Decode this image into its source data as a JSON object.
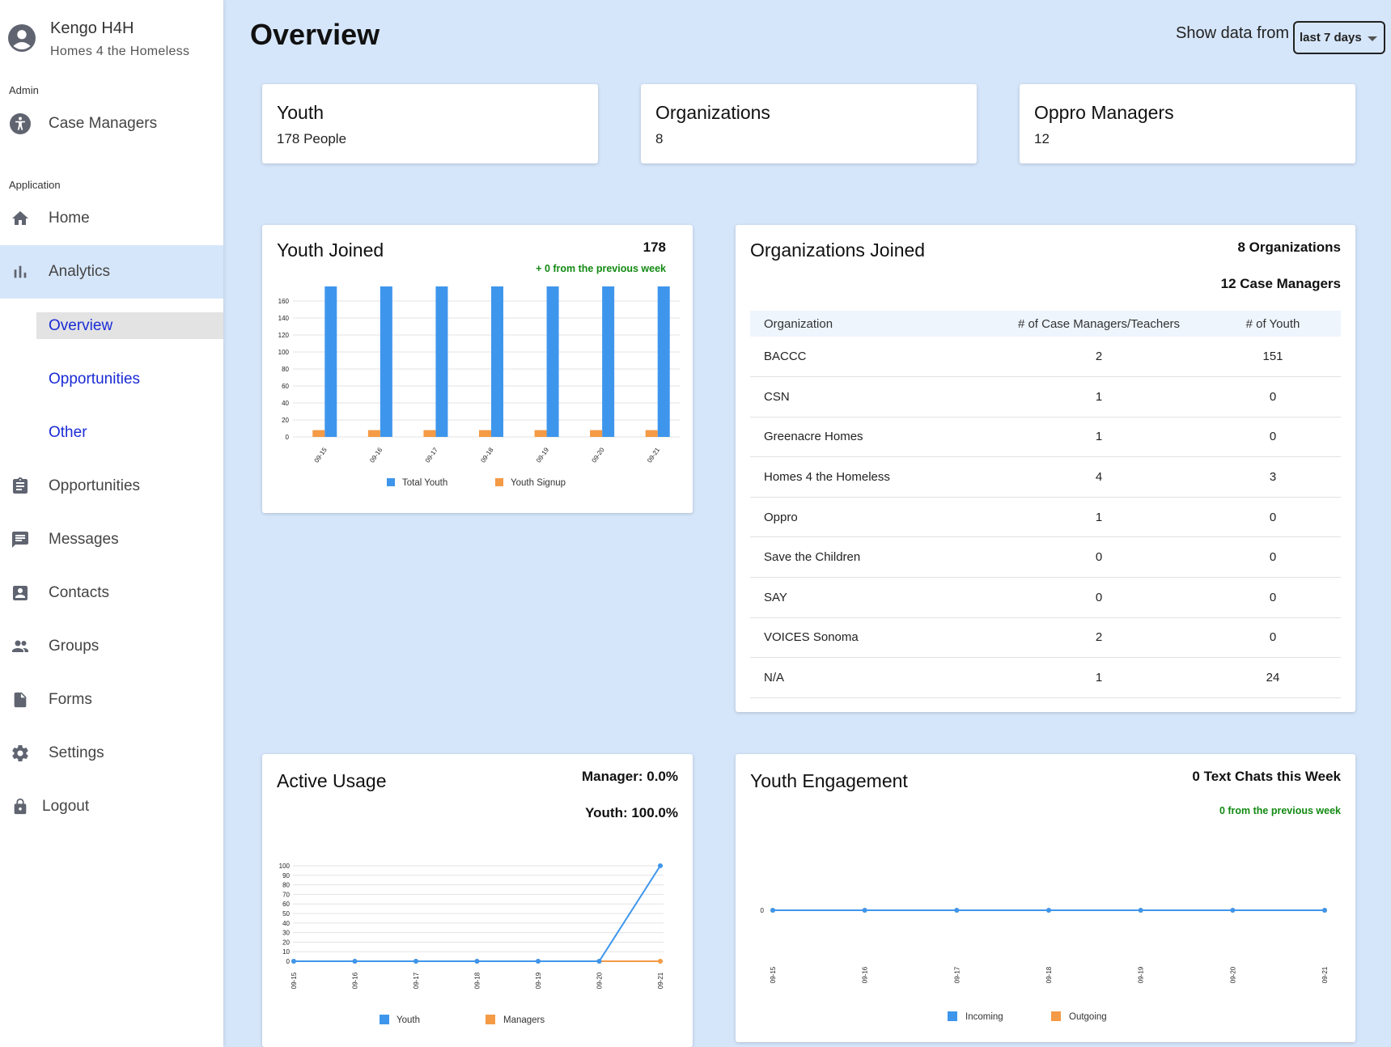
{
  "profile": {
    "name": "Kengo H4H",
    "org": "Homes 4 the Homeless"
  },
  "sidebar": {
    "admin_label": "Admin",
    "admin_items": [
      {
        "label": "Case Managers",
        "icon": "accessibility-icon"
      }
    ],
    "application_label": "Application",
    "items": [
      {
        "label": "Home",
        "icon": "home-icon"
      },
      {
        "label": "Analytics",
        "icon": "bar-chart-icon"
      },
      {
        "label": "Opportunities",
        "icon": "clipboard-icon"
      },
      {
        "label": "Messages",
        "icon": "message-icon"
      },
      {
        "label": "Contacts",
        "icon": "contact-icon"
      },
      {
        "label": "Groups",
        "icon": "group-icon"
      },
      {
        "label": "Forms",
        "icon": "file-icon"
      },
      {
        "label": "Settings",
        "icon": "gear-icon"
      }
    ],
    "sub_items": [
      {
        "label": "Overview"
      },
      {
        "label": "Opportunities"
      },
      {
        "label": "Other"
      }
    ],
    "logout": "Logout"
  },
  "header": {
    "title": "Overview",
    "show_data_label": "Show data from",
    "range_value": "last 7 days"
  },
  "stats": [
    {
      "title": "Youth",
      "value": "178 People"
    },
    {
      "title": "Organizations",
      "value": "8"
    },
    {
      "title": "Oppro Managers",
      "value": "12"
    }
  ],
  "youth_joined": {
    "title": "Youth Joined",
    "total": "178",
    "change": "+ 0 from the previous week"
  },
  "orgs_joined": {
    "title": "Organizations Joined",
    "org_count": "8 Organizations",
    "manager_count": "12 Case Managers",
    "columns": [
      "Organization",
      "# of Case Managers/Teachers",
      "# of Youth"
    ],
    "rows": [
      [
        "BACCC",
        "2",
        "151"
      ],
      [
        "CSN",
        "1",
        "0"
      ],
      [
        "Greenacre Homes",
        "1",
        "0"
      ],
      [
        "Homes 4 the Homeless",
        "4",
        "3"
      ],
      [
        "Oppro",
        "1",
        "0"
      ],
      [
        "Save the Children",
        "0",
        "0"
      ],
      [
        "SAY",
        "0",
        "0"
      ],
      [
        "VOICES Sonoma",
        "2",
        "0"
      ],
      [
        "N/A",
        "1",
        "24"
      ]
    ]
  },
  "active_usage": {
    "title": "Active Usage",
    "manager": "Manager: 0.0%",
    "youth": "Youth: 100.0%"
  },
  "youth_engagement": {
    "title": "Youth Engagement",
    "chats": "0 Text Chats this Week",
    "change": "0 from the previous week"
  },
  "colors": {
    "blue": "#3e96ec",
    "orange": "#f59a45",
    "green": "#138a13"
  },
  "chart_data": [
    {
      "type": "bar",
      "categories": [
        "09-15",
        "09-16",
        "09-17",
        "09-18",
        "09-19",
        "09-20",
        "09-21"
      ],
      "series": [
        {
          "name": "Total Youth",
          "values": [
            178,
            178,
            178,
            178,
            178,
            178,
            178
          ]
        },
        {
          "name": "Youth Signup",
          "values": [
            8,
            8,
            8,
            8,
            8,
            8,
            8
          ]
        }
      ],
      "ylim": [
        0,
        160
      ],
      "yticks": [
        0,
        20,
        40,
        60,
        80,
        100,
        120,
        140,
        160
      ],
      "legend": "bottom"
    },
    {
      "type": "line",
      "categories": [
        "09-15",
        "09-16",
        "09-17",
        "09-18",
        "09-19",
        "09-20",
        "09-21"
      ],
      "series": [
        {
          "name": "Youth",
          "values": [
            0,
            0,
            0,
            0,
            0,
            0,
            100
          ]
        },
        {
          "name": "Managers",
          "values": [
            0,
            0,
            0,
            0,
            0,
            0,
            0
          ]
        }
      ],
      "ylim": [
        0,
        100
      ],
      "yticks": [
        0,
        10,
        20,
        30,
        40,
        50,
        60,
        70,
        80,
        90,
        100
      ],
      "legend": "bottom"
    },
    {
      "type": "line",
      "categories": [
        "09-15",
        "09-16",
        "09-17",
        "09-18",
        "09-19",
        "09-20",
        "09-21"
      ],
      "series": [
        {
          "name": "Incoming",
          "values": [
            0,
            0,
            0,
            0,
            0,
            0,
            0
          ]
        },
        {
          "name": "Outgoing",
          "values": [
            0,
            0,
            0,
            0,
            0,
            0,
            0
          ]
        }
      ],
      "yticks": [
        0
      ],
      "legend": "bottom"
    }
  ]
}
